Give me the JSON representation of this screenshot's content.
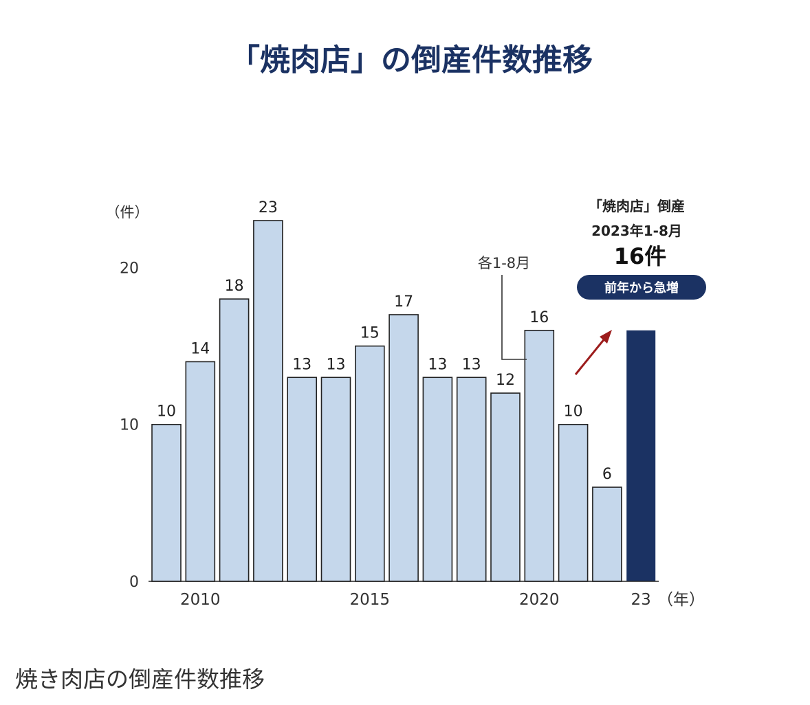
{
  "chart_data": {
    "type": "bar",
    "title": "「焼肉店」の倒産件数推移",
    "ylabel": "（件）",
    "xlabel": "（年）",
    "ylim": [
      0,
      23
    ],
    "y_ticks": [
      "0",
      "10",
      "20"
    ],
    "categories": [
      "2009",
      "2010",
      "2011",
      "2012",
      "2013",
      "2014",
      "2015",
      "2016",
      "2017",
      "2018",
      "2019",
      "2020",
      "2021",
      "2022",
      "2023"
    ],
    "x_tick_labels": [
      {
        "category": "2010",
        "label": "2010"
      },
      {
        "category": "2015",
        "label": "2015"
      },
      {
        "category": "2020",
        "label": "2020"
      },
      {
        "category": "2023",
        "label": "23"
      }
    ],
    "values": [
      10,
      14,
      18,
      23,
      13,
      13,
      15,
      17,
      13,
      13,
      12,
      16,
      10,
      6,
      16
    ],
    "bar_color": "#c5d7eb",
    "highlight_color": "#1b3263",
    "highlight_index": 14,
    "annotations": {
      "partial_note": "各1-8月",
      "callout_title": "「焼肉店」倒産",
      "callout_period": "2023年1-8月",
      "callout_count": "16件",
      "callout_badge": "前年から急増"
    }
  },
  "caption": "焼き肉店の倒産件数推移"
}
